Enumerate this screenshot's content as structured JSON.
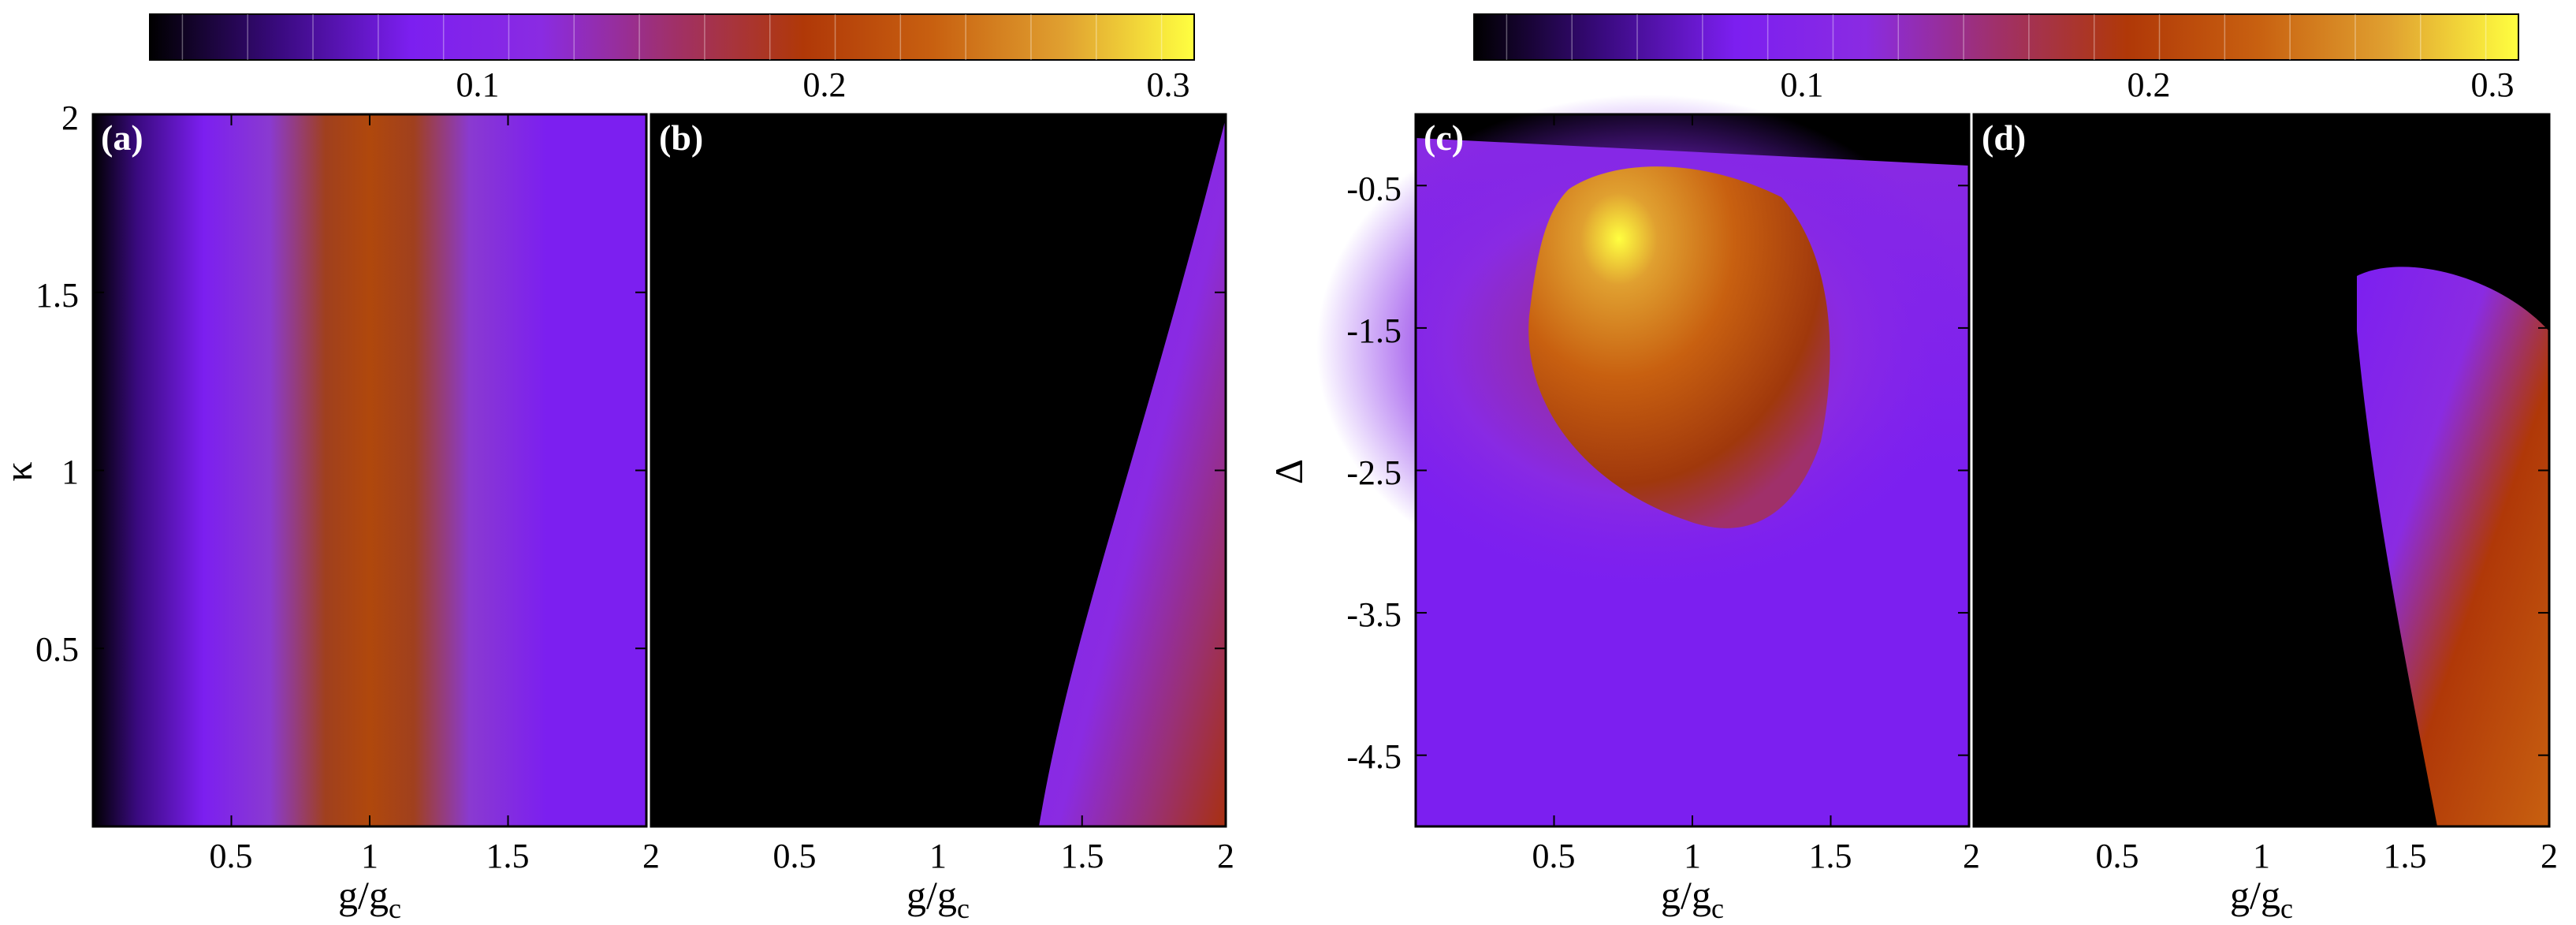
{
  "colors": {
    "colormap": [
      "#000000",
      "#3a0a80",
      "#7c1ff0",
      "#8a2be2",
      "#a0306a",
      "#b03808",
      "#c86010",
      "#e0a030",
      "#ffff40"
    ],
    "background": "#ffffff",
    "frame": "#000000"
  },
  "chart_data": [
    {
      "type": "heatmap",
      "panel": "colorbar-left",
      "ticks": [
        "0.1",
        "0.2",
        "0.3"
      ],
      "range": [
        0,
        0.32
      ]
    },
    {
      "type": "heatmap",
      "panel": "colorbar-right",
      "ticks": [
        "0.1",
        "0.2",
        "0.3"
      ],
      "range": [
        0,
        0.32
      ]
    },
    {
      "type": "heatmap",
      "panel": "a",
      "panel_label": "(a)",
      "xlabel": "g/g",
      "xlabel_sub": "c",
      "ylabel": "κ",
      "xlim": [
        0,
        2
      ],
      "ylim": [
        0,
        2
      ],
      "xticks": [
        "0.5",
        "1",
        "1.5",
        "2"
      ],
      "yticks": [
        "0.5",
        "1",
        "1.5",
        "2"
      ],
      "description_values": {
        "peak": 0.19,
        "peak_at_x": 1.0,
        "peak_range_y": [
          0,
          1.5
        ],
        "edge_value": 0.1
      }
    },
    {
      "type": "heatmap",
      "panel": "b",
      "panel_label": "(b)",
      "xlabel": "g/g",
      "xlabel_sub": "c",
      "xlim": [
        0,
        2
      ],
      "ylim": [
        0,
        2
      ],
      "xticks": [
        "0.5",
        "1",
        "1.5",
        "2"
      ],
      "description_values": {
        "onset_x_at_y0": 1.35,
        "onset_x_at_y2": 1.9,
        "peak": 0.19,
        "peak_at": [
          1.8,
          0.3
        ]
      }
    },
    {
      "type": "heatmap",
      "panel": "c",
      "panel_label": "(c)",
      "xlabel": "g/g",
      "xlabel_sub": "c",
      "ylabel": "Δ",
      "xlim": [
        0,
        2
      ],
      "ylim": [
        -5,
        0
      ],
      "xticks": [
        "0.5",
        "1",
        "1.5",
        "2"
      ],
      "yticks": [
        "-0.5",
        "-1.5",
        "-2.5",
        "-3.5",
        "-4.5"
      ],
      "description_values": {
        "peak": 0.32,
        "peak_at": [
          1.0,
          -0.9
        ],
        "zero_above_y": -0.3
      }
    },
    {
      "type": "heatmap",
      "panel": "d",
      "panel_label": "(d)",
      "xlabel": "g/g",
      "xlabel_sub": "c",
      "xlim": [
        0,
        2
      ],
      "ylim": [
        -5,
        0
      ],
      "xticks": [
        "0.5",
        "1",
        "1.5",
        "2"
      ],
      "description_values": {
        "onset_at": [
          1.4,
          -1.2
        ],
        "peak": 0.2,
        "peak_at": [
          1.85,
          -3.0
        ]
      }
    }
  ]
}
